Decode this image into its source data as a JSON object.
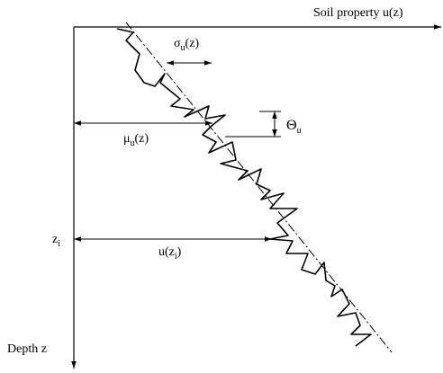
{
  "axes": {
    "x_label": "Soil property  u(z)",
    "y_label": "Depth  z"
  },
  "labels": {
    "sigma": {
      "base": "σ",
      "sub": "u",
      "rest": "(z)"
    },
    "theta": {
      "base": "Θ",
      "sub": "u",
      "rest": ""
    },
    "mu": {
      "base": "μ",
      "sub": "u",
      "rest": "(z)"
    },
    "zi": {
      "base": "z",
      "sub": "i",
      "rest": ""
    },
    "uzi": {
      "base": "u(z",
      "sub": "i",
      "rest": ")"
    }
  }
}
